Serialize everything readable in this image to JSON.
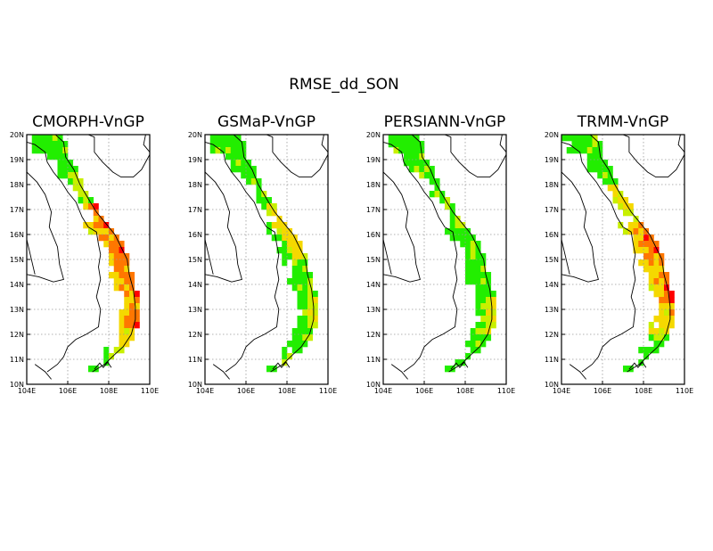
{
  "figure": {
    "title": "RMSE_dd_SON",
    "panels": [
      {
        "title": "CMORPH-VnGP",
        "profile": "cmorph"
      },
      {
        "title": "GSMaP-VnGP",
        "profile": "gsmap"
      },
      {
        "title": "PERSIANN-VnGP",
        "profile": "persiann"
      },
      {
        "title": "TRMM-VnGP",
        "profile": "trmm"
      }
    ],
    "lon_ticks": [
      "104E",
      "106E",
      "108E",
      "110E"
    ],
    "lat_ticks": [
      "20N",
      "19N",
      "18N",
      "17N",
      "16N",
      "15N",
      "14N",
      "13N",
      "12N",
      "11N",
      "10N"
    ],
    "lon_range": [
      104,
      110
    ],
    "lat_range": [
      10,
      20
    ],
    "colors": {
      "high": "#ff0000",
      "mid_high": "#ff7700",
      "mid": "#f5d800",
      "mid_low": "#c8f000",
      "low": "#22ee00",
      "border": "#000000",
      "grid": "#999999"
    }
  }
}
